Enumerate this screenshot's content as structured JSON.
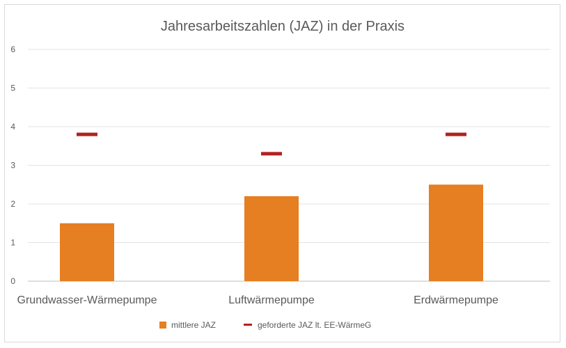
{
  "chart_data": {
    "type": "bar",
    "title": "Jahresarbeitszahlen (JAZ) in der Praxis",
    "categories": [
      "Grundwasser-Wärmepumpe",
      "Luftwärmepumpe",
      "Erdwärmepumpe"
    ],
    "series": [
      {
        "name": "mittlere JAZ",
        "kind": "bar",
        "color": "#E67E22",
        "values": [
          1.5,
          2.2,
          2.5
        ]
      },
      {
        "name": "geforderte JAZ lt. EE-WärmeG",
        "kind": "marker",
        "color": "#B22222",
        "values": [
          3.8,
          3.3,
          3.8
        ]
      }
    ],
    "ylim": [
      0,
      6
    ],
    "yticks": [
      "0",
      "1",
      "2",
      "3",
      "4",
      "5",
      "6"
    ],
    "grid": true,
    "legend_position": "bottom"
  }
}
